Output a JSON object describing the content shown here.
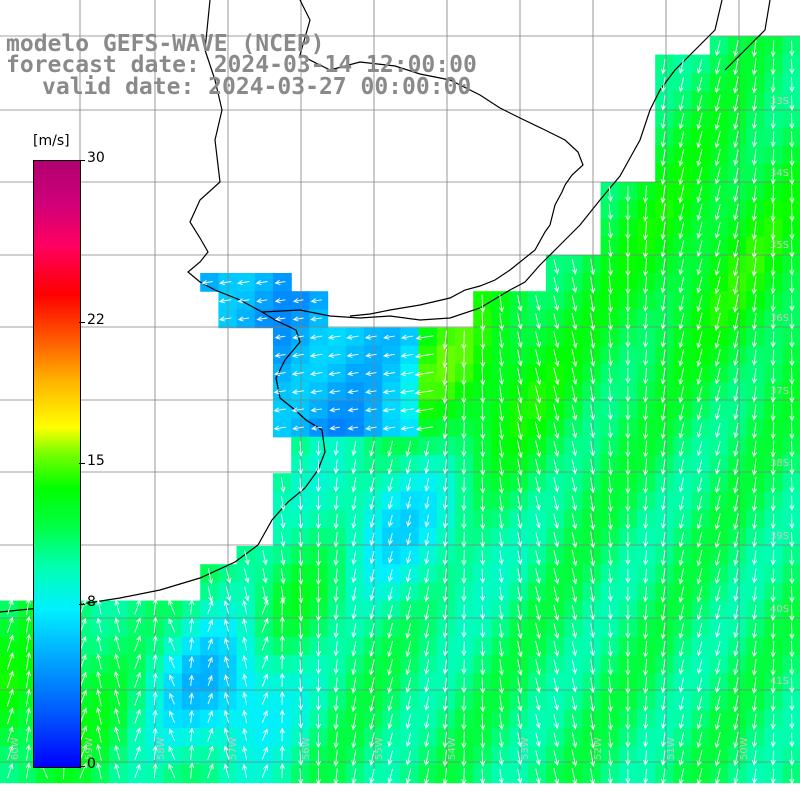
{
  "title": {
    "line1": "modelo GEFS-WAVE (NCEP)",
    "line2": "forecast date: 2024-03-14 12:00:00",
    "line3": "valid date: 2024-03-27 00:00:00"
  },
  "colorbar": {
    "unit": "[m/s]",
    "min": 0,
    "max": 30,
    "ticks": [
      "30",
      "22",
      "15",
      "8",
      "0"
    ],
    "tick_values": [
      30,
      22,
      15,
      8,
      0
    ]
  },
  "colors": {
    "land": "#ffffff",
    "coast": "#000000",
    "grid": "#808080",
    "arrows": "#ffffff",
    "title": "#8a8a8a"
  },
  "map": {
    "field": "wind speed",
    "meridian_labels": [
      "60W",
      "59W",
      "58W",
      "57W",
      "56W",
      "55W",
      "54W",
      "53W",
      "52W",
      "51W",
      "50W"
    ],
    "parallel_labels": [
      "33S",
      "34S",
      "35S",
      "36S",
      "37S",
      "38S",
      "39S",
      "40S",
      "41S"
    ]
  }
}
